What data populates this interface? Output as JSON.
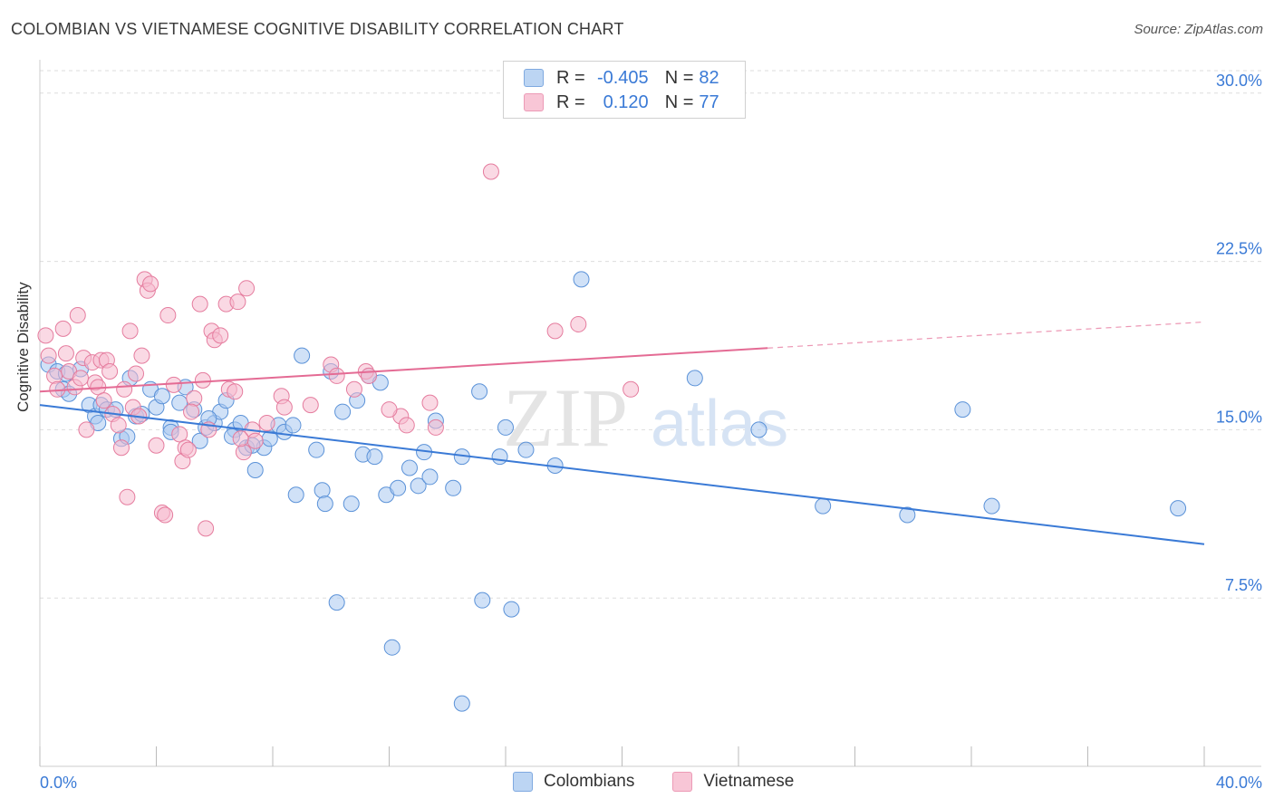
{
  "header": {
    "title": "COLOMBIAN VS VIETNAMESE COGNITIVE DISABILITY CORRELATION CHART",
    "source": "Source: ZipAtlas.com"
  },
  "legend": {
    "rows": [
      {
        "r_label": "R =",
        "r_value": "-0.405",
        "n_label": "N =",
        "n_value": "82"
      },
      {
        "r_label": "R =",
        "r_value": "0.120",
        "n_label": "N =",
        "n_value": "77"
      }
    ],
    "bottom": [
      "Colombians",
      "Vietnamese"
    ]
  },
  "watermark": {
    "zip": "ZIP",
    "atlas": "atlas"
  },
  "colors": {
    "blue_fill": "#a9c9f0",
    "blue_stroke": "#5b92d8",
    "blue_line": "#3a7ad6",
    "pink_fill": "#f6b9cd",
    "pink_stroke": "#e57c9e",
    "pink_line": "#e46b94",
    "tick_text": "#3a7ad6",
    "grid": "#dddddd"
  },
  "chart_data": {
    "type": "scatter",
    "title": "COLOMBIAN VS VIETNAMESE COGNITIVE DISABILITY CORRELATION CHART",
    "xlabel": "",
    "ylabel": "Cognitive Disability",
    "xlim": [
      0,
      40
    ],
    "ylim": [
      0,
      31
    ],
    "x_tick_labels": [
      {
        "v": 0,
        "label": "0.0%"
      },
      {
        "v": 40,
        "label": "40.0%"
      }
    ],
    "y_ticks": [
      {
        "v": 7.5,
        "label": "7.5%"
      },
      {
        "v": 15,
        "label": "15.0%"
      },
      {
        "v": 22.5,
        "label": "22.5%"
      },
      {
        "v": 30,
        "label": "30.0%"
      }
    ],
    "series": [
      {
        "name": "Colombians",
        "r": -0.405,
        "n": 82,
        "trend": {
          "x": [
            0,
            40
          ],
          "y": [
            16.1,
            9.9
          ],
          "dashed_from": null
        },
        "points": [
          [
            0.3,
            17.9
          ],
          [
            0.6,
            17.6
          ],
          [
            0.9,
            17.5
          ],
          [
            0.8,
            16.8
          ],
          [
            1.4,
            17.7
          ],
          [
            1.7,
            16.1
          ],
          [
            1.9,
            15.6
          ],
          [
            2.1,
            16.1
          ],
          [
            2.3,
            15.9
          ],
          [
            2.6,
            15.9
          ],
          [
            2.8,
            14.6
          ],
          [
            3.1,
            17.3
          ],
          [
            3.3,
            15.6
          ],
          [
            3.5,
            15.7
          ],
          [
            3.8,
            16.8
          ],
          [
            4.0,
            16.0
          ],
          [
            4.2,
            16.5
          ],
          [
            4.5,
            15.1
          ],
          [
            4.8,
            16.2
          ],
          [
            5.0,
            16.9
          ],
          [
            5.3,
            15.9
          ],
          [
            5.5,
            14.5
          ],
          [
            5.7,
            15.1
          ],
          [
            6.0,
            15.3
          ],
          [
            6.2,
            15.8
          ],
          [
            6.4,
            16.3
          ],
          [
            6.7,
            15.0
          ],
          [
            6.9,
            15.3
          ],
          [
            7.1,
            14.2
          ],
          [
            7.4,
            13.2
          ],
          [
            7.7,
            14.2
          ],
          [
            7.9,
            14.6
          ],
          [
            8.2,
            15.2
          ],
          [
            8.4,
            14.9
          ],
          [
            8.7,
            15.2
          ],
          [
            8.8,
            12.1
          ],
          [
            9.0,
            18.3
          ],
          [
            9.5,
            14.1
          ],
          [
            9.7,
            12.3
          ],
          [
            9.8,
            11.7
          ],
          [
            10.0,
            17.6
          ],
          [
            10.2,
            7.3
          ],
          [
            10.4,
            15.8
          ],
          [
            10.7,
            11.7
          ],
          [
            10.9,
            16.3
          ],
          [
            11.1,
            13.9
          ],
          [
            11.3,
            17.4
          ],
          [
            11.5,
            13.8
          ],
          [
            11.7,
            17.1
          ],
          [
            11.9,
            12.1
          ],
          [
            12.1,
            5.3
          ],
          [
            12.3,
            12.4
          ],
          [
            12.7,
            13.3
          ],
          [
            13.0,
            12.5
          ],
          [
            13.2,
            14.0
          ],
          [
            13.4,
            12.9
          ],
          [
            13.6,
            15.4
          ],
          [
            14.2,
            12.4
          ],
          [
            14.5,
            13.8
          ],
          [
            14.5,
            2.8
          ],
          [
            15.1,
            16.7
          ],
          [
            15.2,
            7.4
          ],
          [
            15.8,
            13.8
          ],
          [
            16.0,
            15.1
          ],
          [
            16.2,
            7.0
          ],
          [
            16.7,
            14.1
          ],
          [
            17.7,
            13.4
          ],
          [
            18.6,
            21.7
          ],
          [
            22.5,
            17.3
          ],
          [
            24.7,
            15.0
          ],
          [
            26.9,
            11.6
          ],
          [
            29.8,
            11.2
          ],
          [
            31.7,
            15.9
          ],
          [
            32.7,
            11.6
          ],
          [
            39.1,
            11.5
          ],
          [
            1.0,
            16.6
          ],
          [
            2.0,
            15.3
          ],
          [
            3.0,
            14.7
          ],
          [
            4.5,
            14.9
          ],
          [
            5.8,
            15.5
          ],
          [
            6.6,
            14.7
          ],
          [
            7.3,
            14.3
          ]
        ]
      },
      {
        "name": "Vietnamese",
        "r": 0.12,
        "n": 77,
        "trend": {
          "x": [
            0,
            40
          ],
          "y": [
            16.7,
            19.8
          ],
          "dashed_from": 25.0
        },
        "points": [
          [
            0.2,
            19.2
          ],
          [
            0.3,
            18.3
          ],
          [
            0.5,
            17.4
          ],
          [
            0.6,
            16.8
          ],
          [
            0.8,
            19.5
          ],
          [
            1.0,
            17.6
          ],
          [
            1.2,
            16.9
          ],
          [
            1.3,
            20.1
          ],
          [
            1.5,
            18.2
          ],
          [
            1.6,
            15.0
          ],
          [
            1.8,
            18.0
          ],
          [
            1.9,
            17.1
          ],
          [
            2.0,
            16.9
          ],
          [
            2.1,
            18.1
          ],
          [
            2.3,
            18.1
          ],
          [
            2.4,
            17.6
          ],
          [
            2.5,
            15.7
          ],
          [
            2.7,
            15.2
          ],
          [
            2.8,
            14.2
          ],
          [
            2.9,
            16.8
          ],
          [
            3.0,
            12.0
          ],
          [
            3.1,
            19.4
          ],
          [
            3.2,
            16.0
          ],
          [
            3.4,
            15.6
          ],
          [
            3.5,
            18.3
          ],
          [
            3.6,
            21.7
          ],
          [
            3.7,
            21.2
          ],
          [
            3.8,
            21.5
          ],
          [
            4.0,
            14.3
          ],
          [
            4.2,
            11.3
          ],
          [
            4.3,
            11.2
          ],
          [
            4.4,
            20.1
          ],
          [
            4.6,
            17.0
          ],
          [
            4.8,
            14.8
          ],
          [
            4.9,
            13.6
          ],
          [
            5.0,
            14.2
          ],
          [
            5.1,
            14.1
          ],
          [
            5.3,
            16.4
          ],
          [
            5.5,
            20.6
          ],
          [
            5.6,
            17.2
          ],
          [
            5.7,
            10.6
          ],
          [
            5.8,
            15.0
          ],
          [
            5.9,
            19.4
          ],
          [
            6.0,
            19.0
          ],
          [
            6.2,
            19.2
          ],
          [
            6.4,
            20.6
          ],
          [
            6.5,
            16.8
          ],
          [
            6.7,
            16.7
          ],
          [
            6.8,
            20.7
          ],
          [
            7.0,
            14.0
          ],
          [
            7.1,
            21.3
          ],
          [
            7.3,
            15.0
          ],
          [
            7.4,
            14.5
          ],
          [
            8.3,
            16.5
          ],
          [
            8.4,
            16.0
          ],
          [
            10.0,
            17.9
          ],
          [
            10.2,
            17.4
          ],
          [
            10.8,
            16.8
          ],
          [
            11.2,
            17.6
          ],
          [
            11.3,
            17.4
          ],
          [
            12.4,
            15.6
          ],
          [
            12.6,
            15.2
          ],
          [
            13.4,
            16.2
          ],
          [
            13.6,
            15.1
          ],
          [
            15.5,
            26.5
          ],
          [
            17.7,
            19.4
          ],
          [
            18.5,
            19.7
          ],
          [
            20.3,
            16.8
          ],
          [
            0.9,
            18.4
          ],
          [
            1.4,
            17.3
          ],
          [
            2.2,
            16.3
          ],
          [
            3.3,
            17.5
          ],
          [
            5.2,
            15.8
          ],
          [
            6.9,
            14.6
          ],
          [
            7.8,
            15.3
          ],
          [
            9.3,
            16.1
          ],
          [
            12.0,
            15.9
          ]
        ]
      }
    ]
  }
}
